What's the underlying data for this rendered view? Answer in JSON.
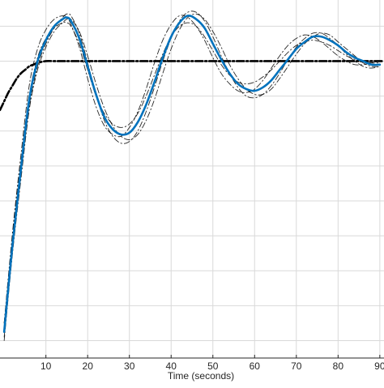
{
  "chart_data": {
    "type": "line",
    "title": "",
    "xlabel": "Time  (seconds)",
    "ylabel": "",
    "xlim": [
      -1,
      91
    ],
    "ylim": [
      -0.7,
      1.35
    ],
    "x_ticks": [
      10,
      20,
      30,
      40,
      50,
      60,
      70,
      80,
      90
    ],
    "x_tick_labels": [
      "10",
      "20",
      "30",
      "40",
      "50",
      "60",
      "70",
      "80",
      "90"
    ],
    "y_gridlines": [
      -0.6,
      -0.4,
      -0.2,
      0.0,
      0.2,
      0.4,
      0.6,
      0.8,
      1.0,
      1.2
    ],
    "grid": true,
    "legend": "none",
    "colors": {
      "main": "#0072bd",
      "ensemble": "#000000",
      "grid": "#d9d9d9",
      "axis": "#262626"
    },
    "series": [
      {
        "style": "solid-blue",
        "x": [
          0,
          2,
          4,
          6,
          8,
          10,
          12,
          14,
          15,
          16,
          18,
          20,
          22,
          24,
          26,
          28,
          30,
          32,
          34,
          36,
          38,
          40,
          42,
          44,
          46,
          48,
          50,
          52,
          54,
          56,
          58,
          60,
          62,
          64,
          66,
          68,
          70,
          72,
          74,
          76,
          78,
          80,
          82,
          84,
          86,
          88,
          90
        ],
        "y": [
          -0.55,
          -0.05,
          0.38,
          0.78,
          1.0,
          1.12,
          1.2,
          1.24,
          1.25,
          1.23,
          1.13,
          0.97,
          0.81,
          0.68,
          0.61,
          0.58,
          0.59,
          0.65,
          0.75,
          0.88,
          1.02,
          1.14,
          1.22,
          1.26,
          1.24,
          1.19,
          1.1,
          1.01,
          0.93,
          0.87,
          0.84,
          0.83,
          0.85,
          0.89,
          0.95,
          1.01,
          1.07,
          1.11,
          1.14,
          1.14,
          1.12,
          1.09,
          1.05,
          1.02,
          1.0,
          0.98,
          0.98
        ]
      },
      {
        "style": "dashdot-black",
        "x": [
          0,
          2,
          4,
          6,
          8,
          10,
          12,
          14,
          15,
          16,
          18,
          20,
          22,
          24,
          26,
          28,
          30,
          32,
          34,
          36,
          38,
          40,
          42,
          44,
          46,
          48,
          50,
          52,
          54,
          56,
          58,
          60,
          62,
          64,
          66,
          68,
          70,
          72,
          74,
          76,
          78,
          80,
          82,
          84,
          86,
          88,
          90
        ],
        "y": [
          -0.5,
          0.02,
          0.46,
          0.86,
          1.07,
          1.18,
          1.24,
          1.26,
          1.25,
          1.21,
          1.08,
          0.9,
          0.74,
          0.63,
          0.58,
          0.57,
          0.62,
          0.71,
          0.84,
          0.99,
          1.12,
          1.21,
          1.26,
          1.25,
          1.2,
          1.12,
          1.02,
          0.93,
          0.87,
          0.83,
          0.82,
          0.84,
          0.89,
          0.96,
          1.03,
          1.09,
          1.13,
          1.15,
          1.14,
          1.11,
          1.07,
          1.03,
          1.0,
          0.98,
          0.98,
          0.99,
          1.0
        ]
      },
      {
        "style": "dashdot-black",
        "x": [
          0,
          2,
          4,
          6,
          8,
          10,
          12,
          14,
          15,
          16,
          18,
          20,
          22,
          24,
          26,
          28,
          30,
          32,
          34,
          36,
          38,
          40,
          42,
          44,
          46,
          48,
          50,
          52,
          54,
          56,
          58,
          60,
          62,
          64,
          66,
          68,
          70,
          72,
          74,
          76,
          78,
          80,
          82,
          84,
          86,
          88,
          90
        ],
        "y": [
          -0.6,
          -0.1,
          0.32,
          0.72,
          0.95,
          1.08,
          1.17,
          1.22,
          1.24,
          1.24,
          1.17,
          1.03,
          0.87,
          0.73,
          0.63,
          0.57,
          0.55,
          0.58,
          0.66,
          0.78,
          0.93,
          1.07,
          1.18,
          1.25,
          1.27,
          1.24,
          1.17,
          1.08,
          0.98,
          0.9,
          0.84,
          0.81,
          0.81,
          0.84,
          0.9,
          0.97,
          1.04,
          1.1,
          1.14,
          1.16,
          1.15,
          1.11,
          1.07,
          1.03,
          0.99,
          0.97,
          0.97
        ]
      },
      {
        "style": "dashdot-black",
        "x": [
          0,
          2,
          4,
          6,
          8,
          10,
          12,
          14,
          15,
          16,
          18,
          20,
          22,
          24,
          26,
          28,
          30,
          32,
          34,
          36,
          38,
          40,
          42,
          44,
          46,
          48,
          50,
          52,
          54,
          56,
          58,
          60,
          62,
          64,
          66,
          68,
          70,
          72,
          74,
          76,
          78,
          80,
          82,
          84,
          86,
          88,
          90
        ],
        "y": [
          -0.5,
          0.0,
          0.42,
          0.8,
          1.02,
          1.13,
          1.19,
          1.22,
          1.22,
          1.2,
          1.1,
          0.95,
          0.8,
          0.7,
          0.64,
          0.62,
          0.64,
          0.7,
          0.8,
          0.92,
          1.04,
          1.14,
          1.2,
          1.22,
          1.2,
          1.14,
          1.06,
          0.98,
          0.92,
          0.88,
          0.87,
          0.88,
          0.91,
          0.95,
          1.0,
          1.05,
          1.09,
          1.11,
          1.12,
          1.11,
          1.09,
          1.06,
          1.03,
          1.01,
          1.0,
          0.99,
          0.99
        ]
      },
      {
        "style": "dashdot-black",
        "x": [
          0,
          2,
          4,
          6,
          8,
          10,
          12,
          14,
          15,
          16,
          18,
          20,
          22,
          24,
          26,
          28,
          30,
          32,
          34,
          36,
          38,
          40,
          42,
          44,
          46,
          48,
          50,
          52,
          54,
          56,
          58,
          60,
          62,
          64,
          66,
          68,
          70,
          72,
          74,
          76,
          78,
          80,
          82,
          84,
          86,
          88,
          90
        ],
        "y": [
          -0.58,
          -0.08,
          0.35,
          0.74,
          0.97,
          1.1,
          1.19,
          1.25,
          1.27,
          1.26,
          1.16,
          0.99,
          0.81,
          0.66,
          0.57,
          0.53,
          0.54,
          0.6,
          0.71,
          0.85,
          1.0,
          1.13,
          1.23,
          1.28,
          1.28,
          1.23,
          1.14,
          1.03,
          0.93,
          0.85,
          0.8,
          0.79,
          0.81,
          0.86,
          0.93,
          1.01,
          1.08,
          1.13,
          1.16,
          1.16,
          1.13,
          1.09,
          1.04,
          1.0,
          0.97,
          0.96,
          0.97
        ]
      },
      {
        "style": "dashdot-black-thick",
        "x": [
          -1,
          0,
          1,
          2,
          3,
          4,
          5,
          6,
          7,
          8,
          10,
          12,
          14,
          16,
          20,
          30,
          40,
          50,
          60,
          70,
          80,
          91
        ],
        "y": [
          0.72,
          0.77,
          0.82,
          0.86,
          0.9,
          0.93,
          0.95,
          0.97,
          0.98,
          0.99,
          1.0,
          1.0,
          1.0,
          1.0,
          1.0,
          1.0,
          1.0,
          1.0,
          1.0,
          1.0,
          1.0,
          1.0
        ]
      }
    ]
  }
}
